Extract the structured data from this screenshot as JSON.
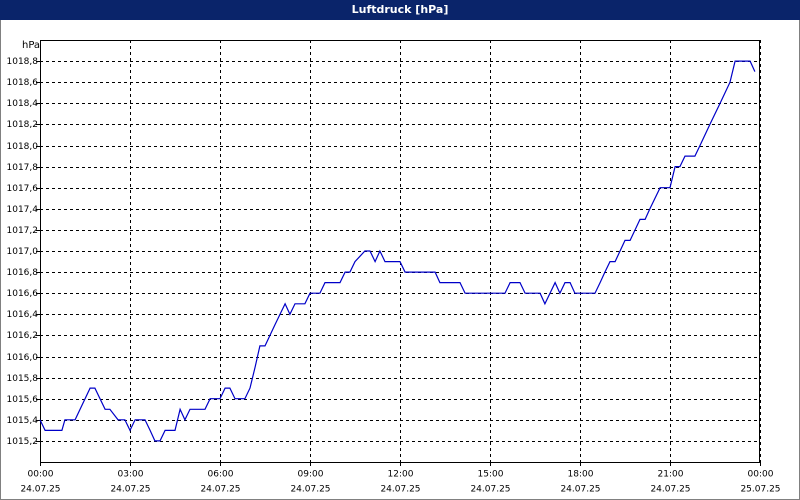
{
  "chart_data": {
    "type": "line",
    "title": "Luftdruck [hPa]",
    "ylabel": "hPa",
    "grid": true,
    "xlim": [
      0,
      24
    ],
    "xticks": [
      {
        "value": 0,
        "label": "00:00",
        "date": "24.07.25"
      },
      {
        "value": 3,
        "label": "03:00",
        "date": "24.07.25"
      },
      {
        "value": 6,
        "label": "06:00",
        "date": "24.07.25"
      },
      {
        "value": 9,
        "label": "09:00",
        "date": "24.07.25"
      },
      {
        "value": 12,
        "label": "12:00",
        "date": "24.07.25"
      },
      {
        "value": 15,
        "label": "15:00",
        "date": "24.07.25"
      },
      {
        "value": 18,
        "label": "18:00",
        "date": "24.07.25"
      },
      {
        "value": 21,
        "label": "21:00",
        "date": "24.07.25"
      },
      {
        "value": 24,
        "label": "00:00",
        "date": "25.07.25"
      }
    ],
    "ylim": [
      1015.0,
      1019.0
    ],
    "yticks": [
      {
        "value": 1015.2,
        "label": "1015,2"
      },
      {
        "value": 1015.4,
        "label": "1015,4"
      },
      {
        "value": 1015.6,
        "label": "1015,6"
      },
      {
        "value": 1015.8,
        "label": "1015,8"
      },
      {
        "value": 1016.0,
        "label": "1016,0"
      },
      {
        "value": 1016.2,
        "label": "1016,2"
      },
      {
        "value": 1016.4,
        "label": "1016,4"
      },
      {
        "value": 1016.6,
        "label": "1016,6"
      },
      {
        "value": 1016.8,
        "label": "1016,8"
      },
      {
        "value": 1017.0,
        "label": "1017,0"
      },
      {
        "value": 1017.2,
        "label": "1017,2"
      },
      {
        "value": 1017.4,
        "label": "1017,4"
      },
      {
        "value": 1017.6,
        "label": "1017,6"
      },
      {
        "value": 1017.8,
        "label": "1017,8"
      },
      {
        "value": 1018.0,
        "label": "1018,0"
      },
      {
        "value": 1018.2,
        "label": "1018,2"
      },
      {
        "value": 1018.4,
        "label": "1018,4"
      },
      {
        "value": 1018.6,
        "label": "1018,6"
      },
      {
        "value": 1018.8,
        "label": "1018,8"
      }
    ],
    "color": "#0000c8",
    "x": [
      0,
      0.17,
      0.73,
      0.83,
      1.17,
      1.67,
      1.83,
      2.17,
      2.33,
      2.6,
      2.83,
      3,
      3.17,
      3.5,
      3.67,
      3.83,
      4,
      4.17,
      4.5,
      4.67,
      4.83,
      5,
      5.5,
      5.67,
      6,
      6.17,
      6.33,
      6.5,
      6.83,
      7,
      7.17,
      7.33,
      7.5,
      7.83,
      8.17,
      8.33,
      8.5,
      8.83,
      9,
      9.33,
      9.5,
      10,
      10.17,
      10.33,
      10.5,
      10.83,
      11,
      11.17,
      11.33,
      11.5,
      12,
      12.17,
      13.17,
      13.33,
      14,
      14.17,
      15.5,
      15.67,
      16,
      16.17,
      16.67,
      16.83,
      17,
      17.17,
      17.33,
      17.5,
      17.67,
      17.83,
      18.5,
      18.67,
      18.83,
      19,
      19.17,
      19.5,
      19.67,
      20,
      20.17,
      20.33,
      20.67,
      21,
      21.17,
      21.33,
      21.5,
      21.83,
      22,
      22.33,
      22.67,
      23,
      23.17,
      23.67,
      23.83
    ],
    "values": [
      1015.4,
      1015.3,
      1015.3,
      1015.4,
      1015.4,
      1015.7,
      1015.7,
      1015.5,
      1015.5,
      1015.4,
      1015.4,
      1015.3,
      1015.4,
      1015.4,
      1015.3,
      1015.2,
      1015.2,
      1015.3,
      1015.3,
      1015.5,
      1015.4,
      1015.5,
      1015.5,
      1015.6,
      1015.6,
      1015.7,
      1015.7,
      1015.6,
      1015.6,
      1015.7,
      1015.9,
      1016.1,
      1016.1,
      1016.3,
      1016.5,
      1016.4,
      1016.5,
      1016.5,
      1016.6,
      1016.6,
      1016.7,
      1016.7,
      1016.8,
      1016.8,
      1016.9,
      1017.0,
      1017.0,
      1016.9,
      1017.0,
      1016.9,
      1016.9,
      1016.8,
      1016.8,
      1016.7,
      1016.7,
      1016.6,
      1016.6,
      1016.7,
      1016.7,
      1016.6,
      1016.6,
      1016.5,
      1016.6,
      1016.7,
      1016.6,
      1016.7,
      1016.7,
      1016.6,
      1016.6,
      1016.7,
      1016.8,
      1016.9,
      1016.9,
      1017.1,
      1017.1,
      1017.3,
      1017.3,
      1017.4,
      1017.6,
      1017.6,
      1017.8,
      1017.8,
      1017.9,
      1017.9,
      1018.0,
      1018.2,
      1018.4,
      1018.6,
      1018.8,
      1018.8,
      1018.7
    ]
  }
}
